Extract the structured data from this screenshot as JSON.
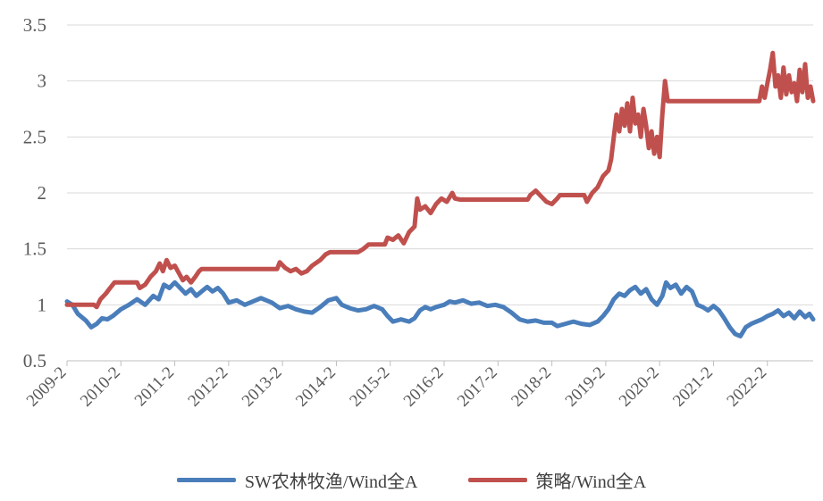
{
  "chart_data": {
    "type": "line",
    "title": "",
    "xlabel": "",
    "ylabel": "",
    "ylim": [
      0.5,
      3.5
    ],
    "yticks": [
      "0.5",
      "1",
      "1.5",
      "2",
      "2.5",
      "3",
      "3.5"
    ],
    "grid": true,
    "legend_position": "bottom",
    "x_tick_labels": [
      "2009-2",
      "2010-2",
      "2011-2",
      "2012-2",
      "2013-2",
      "2014-2",
      "2015-2",
      "2016-2",
      "2017-2",
      "2018-2",
      "2019-2",
      "2020-2",
      "2021-2",
      "2022-2"
    ],
    "x_start": 2009.0,
    "x_end": 2022.85,
    "series": [
      {
        "name": "SW农林牧渔/Wind全A",
        "color": "#4a7ebb",
        "points": [
          [
            2009.0,
            1.03
          ],
          [
            2009.1,
            1.0
          ],
          [
            2009.2,
            0.92
          ],
          [
            2009.35,
            0.86
          ],
          [
            2009.45,
            0.8
          ],
          [
            2009.55,
            0.83
          ],
          [
            2009.65,
            0.88
          ],
          [
            2009.75,
            0.87
          ],
          [
            2009.85,
            0.9
          ],
          [
            2010.0,
            0.96
          ],
          [
            2010.15,
            1.0
          ],
          [
            2010.3,
            1.05
          ],
          [
            2010.45,
            1.0
          ],
          [
            2010.6,
            1.08
          ],
          [
            2010.7,
            1.05
          ],
          [
            2010.8,
            1.18
          ],
          [
            2010.9,
            1.15
          ],
          [
            2011.0,
            1.2
          ],
          [
            2011.1,
            1.15
          ],
          [
            2011.2,
            1.1
          ],
          [
            2011.3,
            1.14
          ],
          [
            2011.4,
            1.08
          ],
          [
            2011.5,
            1.12
          ],
          [
            2011.6,
            1.16
          ],
          [
            2011.7,
            1.12
          ],
          [
            2011.8,
            1.15
          ],
          [
            2011.9,
            1.1
          ],
          [
            2012.0,
            1.02
          ],
          [
            2012.15,
            1.04
          ],
          [
            2012.3,
            1.0
          ],
          [
            2012.45,
            1.03
          ],
          [
            2012.6,
            1.06
          ],
          [
            2012.8,
            1.02
          ],
          [
            2012.95,
            0.97
          ],
          [
            2013.1,
            0.99
          ],
          [
            2013.25,
            0.96
          ],
          [
            2013.4,
            0.94
          ],
          [
            2013.55,
            0.93
          ],
          [
            2013.7,
            0.98
          ],
          [
            2013.85,
            1.04
          ],
          [
            2014.0,
            1.06
          ],
          [
            2014.1,
            1.0
          ],
          [
            2014.25,
            0.97
          ],
          [
            2014.4,
            0.95
          ],
          [
            2014.55,
            0.96
          ],
          [
            2014.7,
            0.99
          ],
          [
            2014.85,
            0.96
          ],
          [
            2014.95,
            0.9
          ],
          [
            2015.05,
            0.85
          ],
          [
            2015.2,
            0.87
          ],
          [
            2015.35,
            0.85
          ],
          [
            2015.45,
            0.88
          ],
          [
            2015.55,
            0.95
          ],
          [
            2015.65,
            0.98
          ],
          [
            2015.75,
            0.96
          ],
          [
            2015.85,
            0.98
          ],
          [
            2016.0,
            1.0
          ],
          [
            2016.1,
            1.03
          ],
          [
            2016.2,
            1.02
          ],
          [
            2016.35,
            1.04
          ],
          [
            2016.5,
            1.01
          ],
          [
            2016.65,
            1.02
          ],
          [
            2016.8,
            0.99
          ],
          [
            2016.95,
            1.0
          ],
          [
            2017.1,
            0.98
          ],
          [
            2017.25,
            0.93
          ],
          [
            2017.4,
            0.87
          ],
          [
            2017.55,
            0.85
          ],
          [
            2017.7,
            0.86
          ],
          [
            2017.85,
            0.84
          ],
          [
            2018.0,
            0.84
          ],
          [
            2018.1,
            0.81
          ],
          [
            2018.25,
            0.83
          ],
          [
            2018.4,
            0.85
          ],
          [
            2018.55,
            0.83
          ],
          [
            2018.7,
            0.82
          ],
          [
            2018.85,
            0.85
          ],
          [
            2018.95,
            0.9
          ],
          [
            2019.05,
            0.96
          ],
          [
            2019.15,
            1.05
          ],
          [
            2019.25,
            1.1
          ],
          [
            2019.35,
            1.08
          ],
          [
            2019.45,
            1.13
          ],
          [
            2019.55,
            1.16
          ],
          [
            2019.65,
            1.1
          ],
          [
            2019.75,
            1.14
          ],
          [
            2019.85,
            1.05
          ],
          [
            2019.95,
            1.0
          ],
          [
            2020.05,
            1.08
          ],
          [
            2020.12,
            1.2
          ],
          [
            2020.2,
            1.15
          ],
          [
            2020.3,
            1.18
          ],
          [
            2020.4,
            1.1
          ],
          [
            2020.5,
            1.16
          ],
          [
            2020.6,
            1.12
          ],
          [
            2020.7,
            1.0
          ],
          [
            2020.8,
            0.98
          ],
          [
            2020.9,
            0.95
          ],
          [
            2021.0,
            0.99
          ],
          [
            2021.1,
            0.95
          ],
          [
            2021.2,
            0.88
          ],
          [
            2021.3,
            0.8
          ],
          [
            2021.4,
            0.74
          ],
          [
            2021.5,
            0.72
          ],
          [
            2021.6,
            0.8
          ],
          [
            2021.7,
            0.83
          ],
          [
            2021.8,
            0.85
          ],
          [
            2021.9,
            0.87
          ],
          [
            2022.0,
            0.9
          ],
          [
            2022.1,
            0.92
          ],
          [
            2022.2,
            0.95
          ],
          [
            2022.3,
            0.9
          ],
          [
            2022.4,
            0.93
          ],
          [
            2022.5,
            0.88
          ],
          [
            2022.6,
            0.94
          ],
          [
            2022.7,
            0.89
          ],
          [
            2022.78,
            0.92
          ],
          [
            2022.85,
            0.87
          ]
        ]
      },
      {
        "name": "策略/Wind全A",
        "color": "#c0504d",
        "points": [
          [
            2009.0,
            1.0
          ],
          [
            2009.5,
            1.0
          ],
          [
            2009.55,
            0.98
          ],
          [
            2009.62,
            1.05
          ],
          [
            2009.72,
            1.1
          ],
          [
            2009.8,
            1.15
          ],
          [
            2009.88,
            1.2
          ],
          [
            2010.3,
            1.2
          ],
          [
            2010.35,
            1.15
          ],
          [
            2010.45,
            1.18
          ],
          [
            2010.55,
            1.25
          ],
          [
            2010.65,
            1.3
          ],
          [
            2010.72,
            1.37
          ],
          [
            2010.78,
            1.3
          ],
          [
            2010.85,
            1.4
          ],
          [
            2010.92,
            1.33
          ],
          [
            2011.0,
            1.35
          ],
          [
            2011.08,
            1.28
          ],
          [
            2011.15,
            1.22
          ],
          [
            2011.22,
            1.25
          ],
          [
            2011.3,
            1.2
          ],
          [
            2011.38,
            1.25
          ],
          [
            2011.45,
            1.3
          ],
          [
            2011.5,
            1.32
          ],
          [
            2012.9,
            1.32
          ],
          [
            2012.95,
            1.38
          ],
          [
            2013.05,
            1.33
          ],
          [
            2013.15,
            1.3
          ],
          [
            2013.25,
            1.32
          ],
          [
            2013.35,
            1.28
          ],
          [
            2013.45,
            1.3
          ],
          [
            2013.55,
            1.35
          ],
          [
            2013.7,
            1.4
          ],
          [
            2013.8,
            1.45
          ],
          [
            2013.88,
            1.47
          ],
          [
            2014.4,
            1.47
          ],
          [
            2014.5,
            1.5
          ],
          [
            2014.6,
            1.54
          ],
          [
            2014.9,
            1.54
          ],
          [
            2014.95,
            1.6
          ],
          [
            2015.05,
            1.58
          ],
          [
            2015.15,
            1.62
          ],
          [
            2015.25,
            1.55
          ],
          [
            2015.35,
            1.65
          ],
          [
            2015.45,
            1.7
          ],
          [
            2015.5,
            1.95
          ],
          [
            2015.55,
            1.85
          ],
          [
            2015.65,
            1.88
          ],
          [
            2015.75,
            1.82
          ],
          [
            2015.85,
            1.9
          ],
          [
            2015.95,
            1.95
          ],
          [
            2016.05,
            1.92
          ],
          [
            2016.15,
            2.0
          ],
          [
            2016.2,
            1.95
          ],
          [
            2016.3,
            1.94
          ],
          [
            2017.55,
            1.94
          ],
          [
            2017.6,
            1.98
          ],
          [
            2017.7,
            2.02
          ],
          [
            2017.8,
            1.97
          ],
          [
            2017.9,
            1.92
          ],
          [
            2018.0,
            1.9
          ],
          [
            2018.1,
            1.95
          ],
          [
            2018.15,
            1.98
          ],
          [
            2018.6,
            1.98
          ],
          [
            2018.65,
            1.92
          ],
          [
            2018.75,
            2.0
          ],
          [
            2018.85,
            2.05
          ],
          [
            2018.95,
            2.15
          ],
          [
            2019.05,
            2.2
          ],
          [
            2019.1,
            2.3
          ],
          [
            2019.15,
            2.5
          ],
          [
            2019.2,
            2.7
          ],
          [
            2019.25,
            2.55
          ],
          [
            2019.3,
            2.75
          ],
          [
            2019.35,
            2.6
          ],
          [
            2019.4,
            2.8
          ],
          [
            2019.45,
            2.55
          ],
          [
            2019.5,
            2.85
          ],
          [
            2019.55,
            2.62
          ],
          [
            2019.6,
            2.7
          ],
          [
            2019.65,
            2.5
          ],
          [
            2019.7,
            2.75
          ],
          [
            2019.75,
            2.6
          ],
          [
            2019.8,
            2.4
          ],
          [
            2019.85,
            2.55
          ],
          [
            2019.9,
            2.35
          ],
          [
            2019.95,
            2.5
          ],
          [
            2020.0,
            2.32
          ],
          [
            2020.05,
            2.7
          ],
          [
            2020.1,
            3.0
          ],
          [
            2020.15,
            2.82
          ],
          [
            2021.85,
            2.82
          ],
          [
            2021.9,
            2.95
          ],
          [
            2021.95,
            2.85
          ],
          [
            2022.0,
            2.98
          ],
          [
            2022.05,
            3.1
          ],
          [
            2022.1,
            3.25
          ],
          [
            2022.15,
            2.95
          ],
          [
            2022.2,
            3.05
          ],
          [
            2022.25,
            2.85
          ],
          [
            2022.3,
            3.12
          ],
          [
            2022.35,
            2.88
          ],
          [
            2022.4,
            3.05
          ],
          [
            2022.45,
            2.9
          ],
          [
            2022.5,
            2.98
          ],
          [
            2022.55,
            2.82
          ],
          [
            2022.6,
            3.1
          ],
          [
            2022.65,
            2.9
          ],
          [
            2022.7,
            3.15
          ],
          [
            2022.75,
            2.85
          ],
          [
            2022.8,
            2.95
          ],
          [
            2022.85,
            2.82
          ]
        ]
      }
    ]
  }
}
